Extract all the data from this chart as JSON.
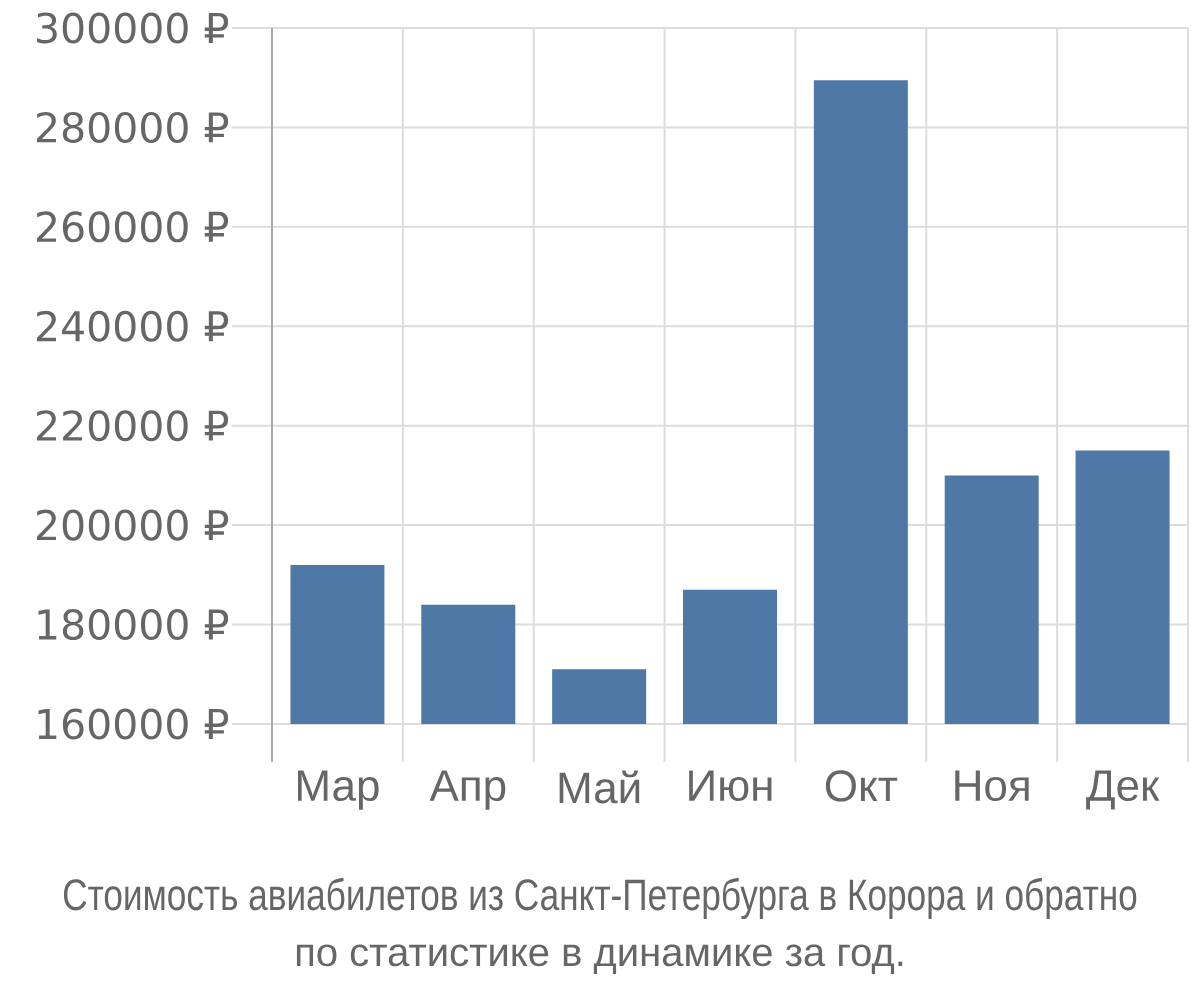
{
  "chart_data": {
    "type": "bar",
    "title": "Стоимость авиабилетов из Санкт-Петербурга в Корора и обратно",
    "subtitle": "по статистике в динамике за год.",
    "categories": [
      "Мар",
      "Апр",
      "Май",
      "Июн",
      "Окт",
      "Ноя",
      "Дек"
    ],
    "values": [
      192000,
      184000,
      171000,
      187000,
      289500,
      210000,
      215000
    ],
    "color": "#4e79a7",
    "ylim": [
      160000,
      300000
    ],
    "yticks": [
      {
        "value": 160000,
        "label": "160000 ₽"
      },
      {
        "value": 180000,
        "label": "180000 ₽"
      },
      {
        "value": 200000,
        "label": "200000 ₽"
      },
      {
        "value": 220000,
        "label": "220000 ₽"
      },
      {
        "value": 240000,
        "label": "240000 ₽"
      },
      {
        "value": 260000,
        "label": "260000 ₽"
      },
      {
        "value": 280000,
        "label": "280000 ₽"
      },
      {
        "value": 300000,
        "label": "300000 ₽"
      }
    ],
    "grid": true
  }
}
